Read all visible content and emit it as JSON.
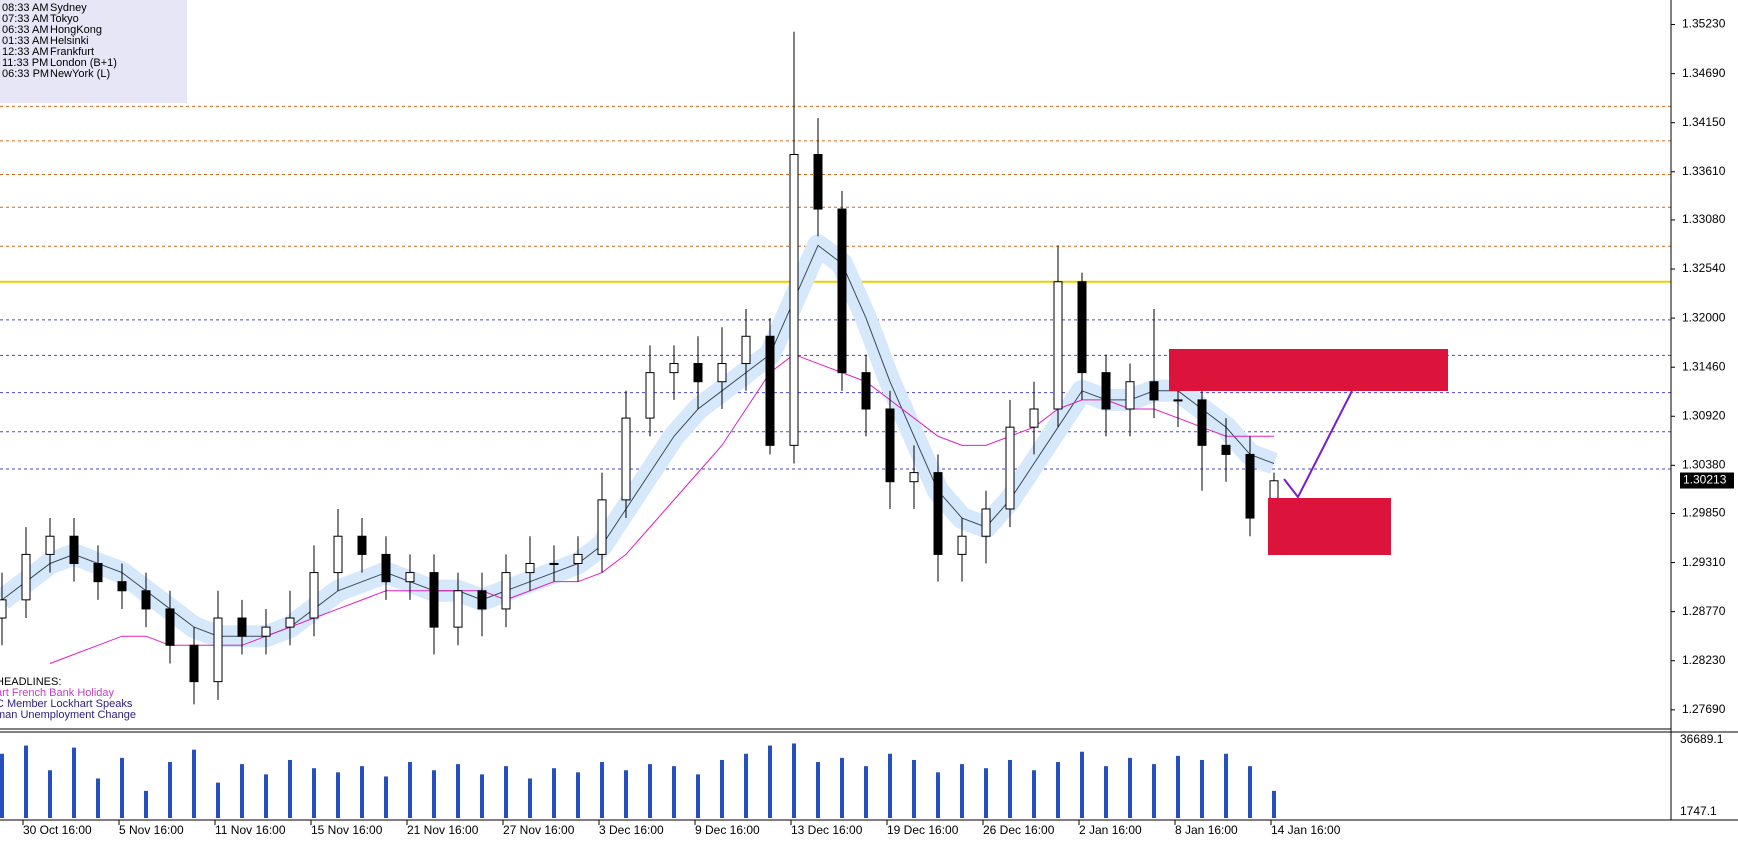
{
  "chart_data": {
    "type": "candlestick",
    "clocks": [
      {
        "time": "08:33 AM",
        "city": "Sydney"
      },
      {
        "time": "07:33 AM",
        "city": "Tokyo"
      },
      {
        "time": "06:33 AM",
        "city": "HongKong"
      },
      {
        "time": "01:33 AM",
        "city": "Helsinki"
      },
      {
        "time": "12:33 AM",
        "city": "Frankfurt"
      },
      {
        "time": "11:33 PM",
        "city": "London  (B+1)"
      },
      {
        "time": "06:33 PM",
        "city": "NewYork  (L)"
      }
    ],
    "headlines": [
      "HEADLINES:",
      "art French Bank Holiday",
      "C Member Lockhart Speaks",
      "man Unemployment Change"
    ],
    "categories": [
      null,
      "30 Oct 16:00",
      null,
      null,
      null,
      "5 Nov 16:00",
      null,
      null,
      null,
      "11 Nov 16:00",
      null,
      null,
      null,
      "15 Nov 16:00",
      null,
      null,
      null,
      "21 Nov 16:00",
      null,
      null,
      null,
      "27 Nov 16:00",
      null,
      null,
      null,
      "3 Dec 16:00",
      null,
      null,
      null,
      "9 Dec 16:00",
      null,
      null,
      null,
      "13 Dec 16:00",
      null,
      null,
      null,
      "19 Dec 16:00",
      null,
      null,
      null,
      "26 Dec 16:00",
      null,
      null,
      null,
      "2 Jan 16:00",
      null,
      null,
      null,
      "8 Jan 16:00",
      null,
      null,
      null,
      "14 Jan 16:00"
    ],
    "open": [
      1.287,
      1.289,
      1.294,
      1.296,
      1.293,
      1.291,
      1.29,
      1.288,
      1.284,
      1.28,
      1.287,
      1.285,
      1.286,
      1.287,
      1.292,
      1.296,
      1.294,
      1.291,
      1.292,
      1.286,
      1.29,
      1.288,
      1.292,
      1.293,
      1.293,
      1.294,
      1.3,
      1.309,
      1.314,
      1.315,
      1.313,
      1.315,
      1.318,
      1.306,
      1.338,
      1.332,
      1.314,
      1.31,
      1.302,
      1.303,
      1.294,
      1.296,
      1.299,
      1.308,
      1.31,
      1.324,
      1.314,
      1.31,
      1.313,
      1.311,
      1.311,
      1.306,
      1.305,
      1.298
    ],
    "high": [
      1.292,
      1.297,
      1.298,
      1.298,
      1.295,
      1.293,
      1.292,
      1.29,
      1.286,
      1.29,
      1.289,
      1.288,
      1.29,
      1.295,
      1.299,
      1.298,
      1.296,
      1.294,
      1.294,
      1.292,
      1.292,
      1.294,
      1.296,
      1.295,
      1.296,
      1.303,
      1.312,
      1.317,
      1.317,
      1.318,
      1.319,
      1.321,
      1.32,
      1.3515,
      1.342,
      1.334,
      1.316,
      1.312,
      1.306,
      1.305,
      1.298,
      1.301,
      1.311,
      1.313,
      1.328,
      1.325,
      1.316,
      1.315,
      1.321,
      1.314,
      1.313,
      1.309,
      1.307,
      1.303
    ],
    "low": [
      1.284,
      1.287,
      1.292,
      1.291,
      1.289,
      1.288,
      1.286,
      1.282,
      1.2775,
      1.278,
      1.283,
      1.283,
      1.284,
      1.285,
      1.29,
      1.292,
      1.289,
      1.289,
      1.283,
      1.284,
      1.285,
      1.286,
      1.29,
      1.291,
      1.291,
      1.292,
      1.298,
      1.307,
      1.311,
      1.31,
      1.31,
      1.312,
      1.305,
      1.304,
      1.329,
      1.312,
      1.307,
      1.299,
      1.299,
      1.291,
      1.291,
      1.293,
      1.297,
      1.305,
      1.308,
      1.311,
      1.307,
      1.307,
      1.309,
      1.308,
      1.301,
      1.302,
      1.296,
      1.297
    ],
    "close": [
      1.289,
      1.294,
      1.296,
      1.293,
      1.291,
      1.29,
      1.288,
      1.284,
      1.28,
      1.287,
      1.285,
      1.286,
      1.287,
      1.292,
      1.296,
      1.294,
      1.291,
      1.292,
      1.286,
      1.29,
      1.288,
      1.292,
      1.293,
      1.293,
      1.294,
      1.3,
      1.309,
      1.314,
      1.315,
      1.313,
      1.315,
      1.318,
      1.306,
      1.338,
      1.332,
      1.314,
      1.31,
      1.302,
      1.303,
      1.294,
      1.296,
      1.299,
      1.308,
      1.31,
      1.324,
      1.314,
      1.31,
      1.313,
      1.311,
      1.311,
      1.306,
      1.305,
      1.298,
      1.3021
    ],
    "overlays": [
      {
        "color": "#3c4a5c",
        "band_color": "#d6e8fb",
        "values": [
          1.289,
          1.291,
          1.293,
          1.294,
          1.293,
          1.292,
          1.29,
          1.288,
          1.286,
          1.285,
          1.285,
          1.285,
          1.286,
          1.288,
          1.29,
          1.291,
          1.292,
          1.291,
          1.29,
          1.29,
          1.289,
          1.29,
          1.291,
          1.292,
          1.293,
          1.295,
          1.299,
          1.303,
          1.307,
          1.31,
          1.312,
          1.314,
          1.316,
          1.322,
          1.328,
          1.326,
          1.32,
          1.313,
          1.307,
          1.301,
          1.298,
          1.297,
          1.3,
          1.304,
          1.308,
          1.312,
          1.311,
          1.311,
          1.312,
          1.312,
          1.31,
          1.308,
          1.305,
          1.304
        ]
      },
      {
        "color": "#e020c0",
        "values": [
          null,
          null,
          1.282,
          1.283,
          1.284,
          1.285,
          1.285,
          1.284,
          1.284,
          1.284,
          1.284,
          1.285,
          1.286,
          1.287,
          1.288,
          1.289,
          1.29,
          1.29,
          1.29,
          1.29,
          1.29,
          1.289,
          1.29,
          1.291,
          1.291,
          1.292,
          1.294,
          1.297,
          1.3,
          1.303,
          1.306,
          1.31,
          1.314,
          1.316,
          1.315,
          1.314,
          1.313,
          1.311,
          1.309,
          1.307,
          1.306,
          1.306,
          1.307,
          1.308,
          1.31,
          1.311,
          1.311,
          1.31,
          1.31,
          1.309,
          1.308,
          1.307,
          1.307,
          1.307
        ]
      }
    ],
    "levels": [
      {
        "value": 1.3433,
        "color": "#d2691e"
      },
      {
        "value": 1.3395,
        "color": "#d2691e"
      },
      {
        "value": 1.3358,
        "color": "#d2691e"
      },
      {
        "value": 1.3322,
        "color": "#d2691e"
      },
      {
        "value": 1.3279,
        "color": "#d2691e"
      },
      {
        "value": 1.324,
        "color": "#e6d200"
      },
      {
        "value": 1.3198,
        "color": "#4a4ac8"
      },
      {
        "value": 1.3159,
        "color": "#4a4ac8"
      },
      {
        "value": 1.3118,
        "color": "#4a4ac8"
      },
      {
        "value": 1.3075,
        "color": "#4a4ac8"
      },
      {
        "value": 1.3034,
        "color": "#4a4ac8"
      }
    ],
    "ylim": [
      1.2749,
      1.355
    ],
    "yticks": [
      {
        "value": 1.3523,
        "label": "1.35230"
      },
      {
        "value": 1.3469,
        "label": "1.34690"
      },
      {
        "value": 1.3415,
        "label": "1.34150"
      },
      {
        "value": 1.3361,
        "label": "1.33610"
      },
      {
        "value": 1.3308,
        "label": "1.33080"
      },
      {
        "value": 1.3254,
        "label": "1.32540"
      },
      {
        "value": 1.32,
        "label": "1.32000"
      },
      {
        "value": 1.3146,
        "label": "1.31460"
      },
      {
        "value": 1.3092,
        "label": "1.30920"
      },
      {
        "value": 1.3038,
        "label": "1.30380"
      },
      {
        "value": 1.2985,
        "label": "1.29850"
      },
      {
        "value": 1.2931,
        "label": "1.29310"
      },
      {
        "value": 1.2877,
        "label": "1.28770"
      },
      {
        "value": 1.2823,
        "label": "1.28230"
      },
      {
        "value": 1.2769,
        "label": "1.27690"
      }
    ],
    "last_price": {
      "value": 1.30213,
      "label": "1.30213"
    },
    "volume": [
      30000,
      34000,
      22000,
      33000,
      18000,
      28000,
      12000,
      26000,
      32000,
      16000,
      25000,
      20000,
      27000,
      23000,
      21000,
      24000,
      19000,
      26000,
      22000,
      25000,
      20000,
      24000,
      18000,
      23000,
      21000,
      26000,
      22000,
      25000,
      24000,
      20000,
      27000,
      30000,
      34000,
      35000,
      26000,
      28000,
      24000,
      30000,
      27000,
      21000,
      25000,
      23000,
      27000,
      22000,
      26000,
      31000,
      24000,
      28000,
      25000,
      29000,
      27000,
      30000,
      24000,
      12000
    ],
    "volume_color": "#2450c0",
    "vlim": [
      1747.1,
      36689.1
    ],
    "vticks": [
      36689.1,
      1747.1
    ]
  }
}
